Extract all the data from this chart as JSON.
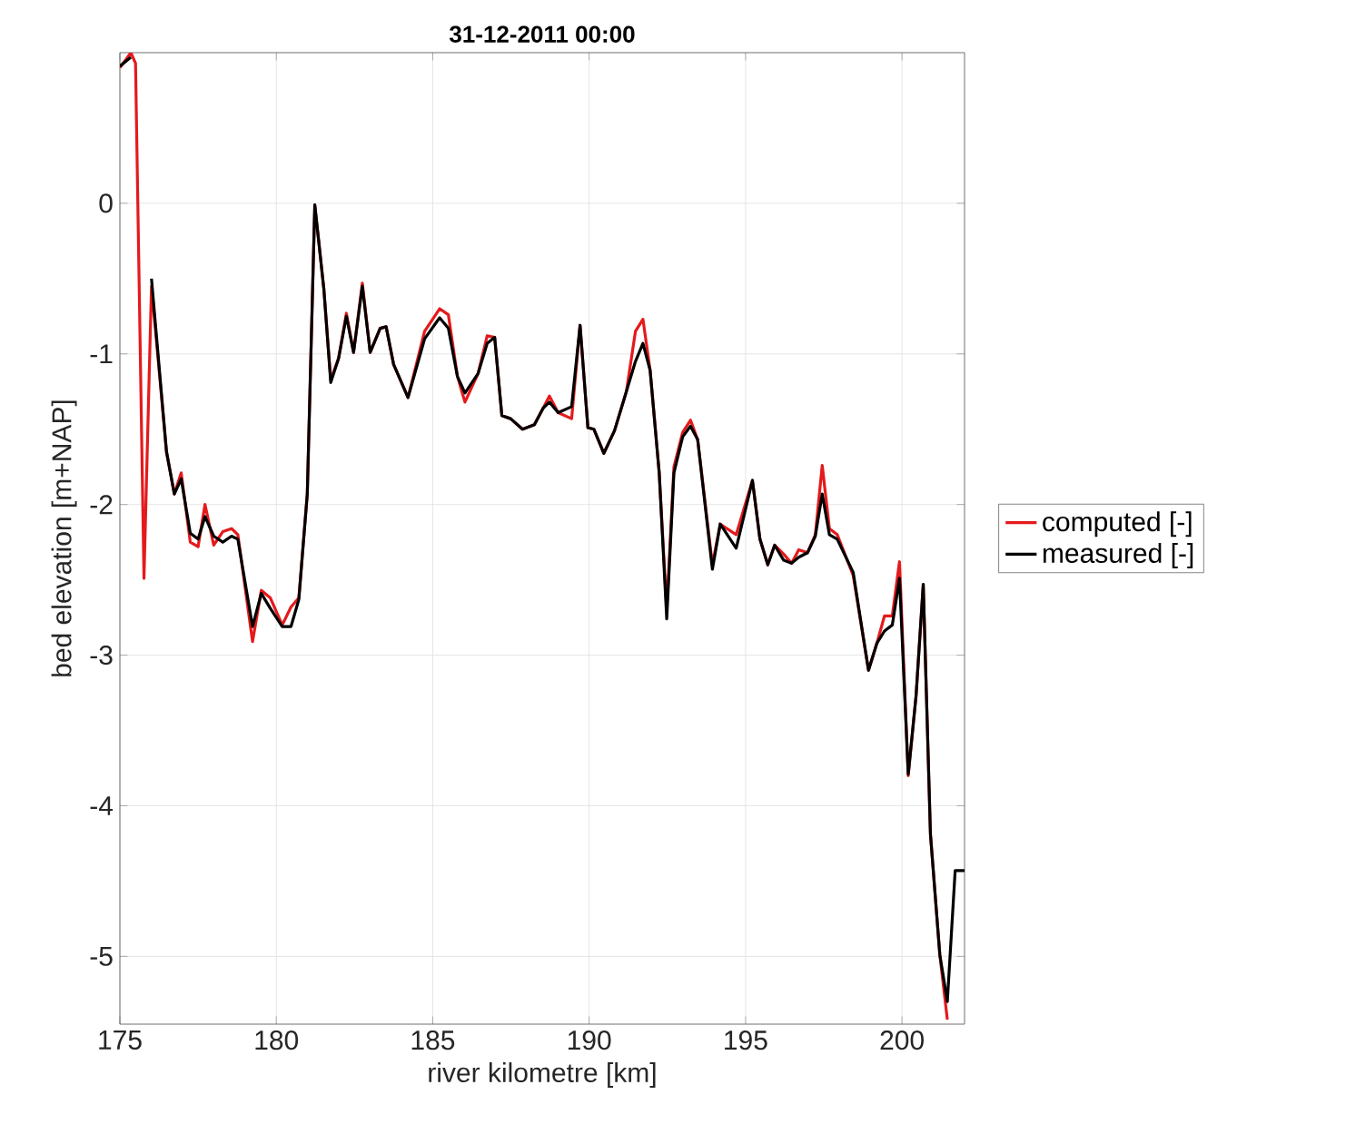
{
  "chart_data": {
    "type": "line",
    "title": "31-12-2011 00:00",
    "xlabel": "river kilometre [km]",
    "ylabel": "bed elevation [m+NAP]",
    "x": [
      175.0,
      175.35,
      175.5,
      175.77,
      176.01,
      176.49,
      176.74,
      176.96,
      177.25,
      177.5,
      177.72,
      178.0,
      178.29,
      178.57,
      178.77,
      179.24,
      179.52,
      179.81,
      180.19,
      180.47,
      180.72,
      180.99,
      181.23,
      181.52,
      181.74,
      181.99,
      182.24,
      182.47,
      182.75,
      183.0,
      183.32,
      183.51,
      183.75,
      184.21,
      184.74,
      185.22,
      185.5,
      185.79,
      186.03,
      186.45,
      186.74,
      186.98,
      187.21,
      187.49,
      187.87,
      188.25,
      188.53,
      188.73,
      189.01,
      189.44,
      189.71,
      189.96,
      190.15,
      190.47,
      190.81,
      191.19,
      191.48,
      191.72,
      191.95,
      192.24,
      192.48,
      192.71,
      192.99,
      193.24,
      193.47,
      193.94,
      194.19,
      194.7,
      195.22,
      195.46,
      195.71,
      195.93,
      196.22,
      196.47,
      196.7,
      196.98,
      197.23,
      197.45,
      197.68,
      197.93,
      198.44,
      198.93,
      199.2,
      199.44,
      199.69,
      199.92,
      200.2,
      200.45,
      200.68,
      200.91,
      201.21,
      201.45,
      201.7,
      202.0
    ],
    "series": [
      {
        "name": "computed [-]",
        "color": "#e41a1c",
        "values": [
          0.9,
          1.0,
          0.93,
          -2.49,
          -0.55,
          -1.65,
          -1.93,
          -1.79,
          -2.25,
          -2.28,
          -2.0,
          -2.27,
          -2.18,
          -2.16,
          -2.2,
          -2.91,
          -2.57,
          -2.62,
          -2.8,
          -2.68,
          -2.62,
          -1.93,
          -0.01,
          -0.57,
          -1.17,
          -1.03,
          -0.73,
          -0.99,
          -0.53,
          -0.99,
          -0.83,
          -0.82,
          -1.07,
          -1.29,
          -0.85,
          -0.7,
          -0.74,
          -1.15,
          -1.32,
          -1.13,
          -0.88,
          -0.89,
          -1.41,
          -1.43,
          -1.5,
          -1.47,
          -1.36,
          -1.28,
          -1.39,
          -1.43,
          -0.81,
          -1.49,
          -1.5,
          -1.66,
          -1.51,
          -1.25,
          -0.85,
          -0.77,
          -1.11,
          -1.79,
          -2.7,
          -1.75,
          -1.52,
          -1.44,
          -1.57,
          -2.4,
          -2.13,
          -2.2,
          -1.84,
          -2.23,
          -2.4,
          -2.27,
          -2.33,
          -2.39,
          -2.3,
          -2.32,
          -2.2,
          -1.74,
          -2.16,
          -2.2,
          -2.47,
          -3.1,
          -2.92,
          -2.74,
          -2.74,
          -2.38,
          -3.8,
          -3.27,
          -2.53,
          -4.19,
          -4.99,
          -5.42,
          null,
          null
        ]
      },
      {
        "name": "measured [-]",
        "color": "#000000",
        "values": [
          0.91,
          0.97,
          null,
          null,
          -0.5,
          -1.65,
          -1.93,
          -1.83,
          -2.19,
          -2.23,
          -2.08,
          -2.21,
          -2.25,
          -2.21,
          -2.23,
          -2.81,
          -2.59,
          -2.69,
          -2.81,
          -2.81,
          -2.63,
          -1.93,
          -0.01,
          -0.57,
          -1.19,
          -1.03,
          -0.75,
          -0.99,
          -0.55,
          -0.99,
          -0.83,
          -0.82,
          -1.07,
          -1.29,
          -0.9,
          -0.76,
          -0.83,
          -1.15,
          -1.26,
          -1.13,
          -0.93,
          -0.89,
          -1.41,
          -1.43,
          -1.5,
          -1.47,
          -1.36,
          -1.32,
          -1.39,
          -1.35,
          -0.81,
          -1.49,
          -1.5,
          -1.66,
          -1.51,
          -1.25,
          -1.05,
          -0.93,
          -1.11,
          -1.79,
          -2.76,
          -1.79,
          -1.55,
          -1.48,
          -1.57,
          -2.43,
          -2.13,
          -2.29,
          -1.84,
          -2.23,
          -2.4,
          -2.27,
          -2.37,
          -2.39,
          -2.35,
          -2.32,
          -2.21,
          -1.93,
          -2.2,
          -2.23,
          -2.45,
          -3.1,
          -2.92,
          -2.84,
          -2.8,
          -2.49,
          -3.79,
          -3.27,
          -2.53,
          -4.19,
          -4.99,
          -5.3,
          -4.43,
          -4.43
        ]
      }
    ],
    "xlim": [
      175,
      202
    ],
    "ylim": [
      -5.45,
      1
    ],
    "xticks": [
      175,
      180,
      185,
      190,
      195,
      200
    ],
    "yticks": [
      -5,
      -4,
      -3,
      -2,
      -1,
      0
    ],
    "grid": true,
    "legend": "right",
    "line_style": "solid",
    "marker": "none"
  }
}
